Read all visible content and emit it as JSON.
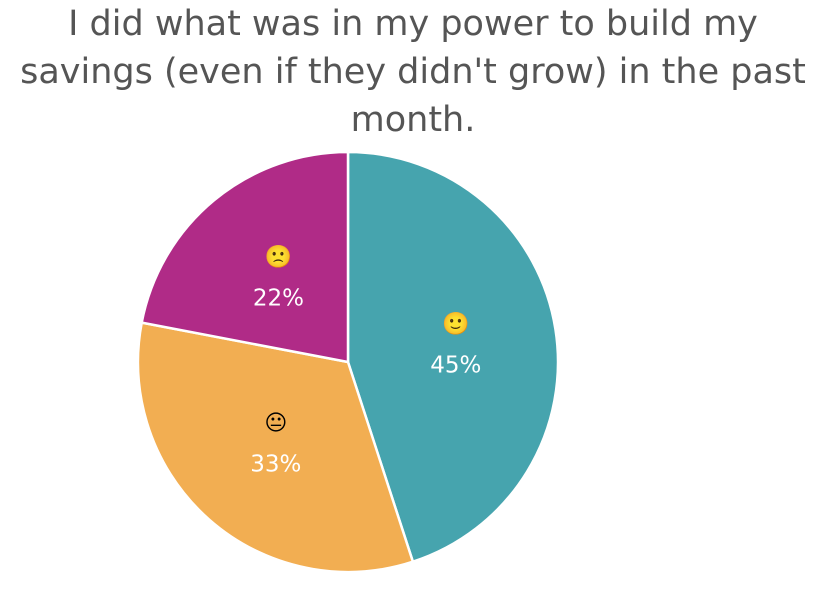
{
  "chart_data": {
    "type": "pie",
    "title": "I did what was in my power to build my savings (even if they didn't grow) in the past month.",
    "categories": [
      "🙂",
      "😐",
      "🙁"
    ],
    "values": [
      45,
      33,
      22
    ],
    "value_labels": [
      "45%",
      "33%",
      "22%"
    ],
    "colors": [
      "#46a4ae",
      "#f2ae52",
      "#b02b87"
    ]
  }
}
